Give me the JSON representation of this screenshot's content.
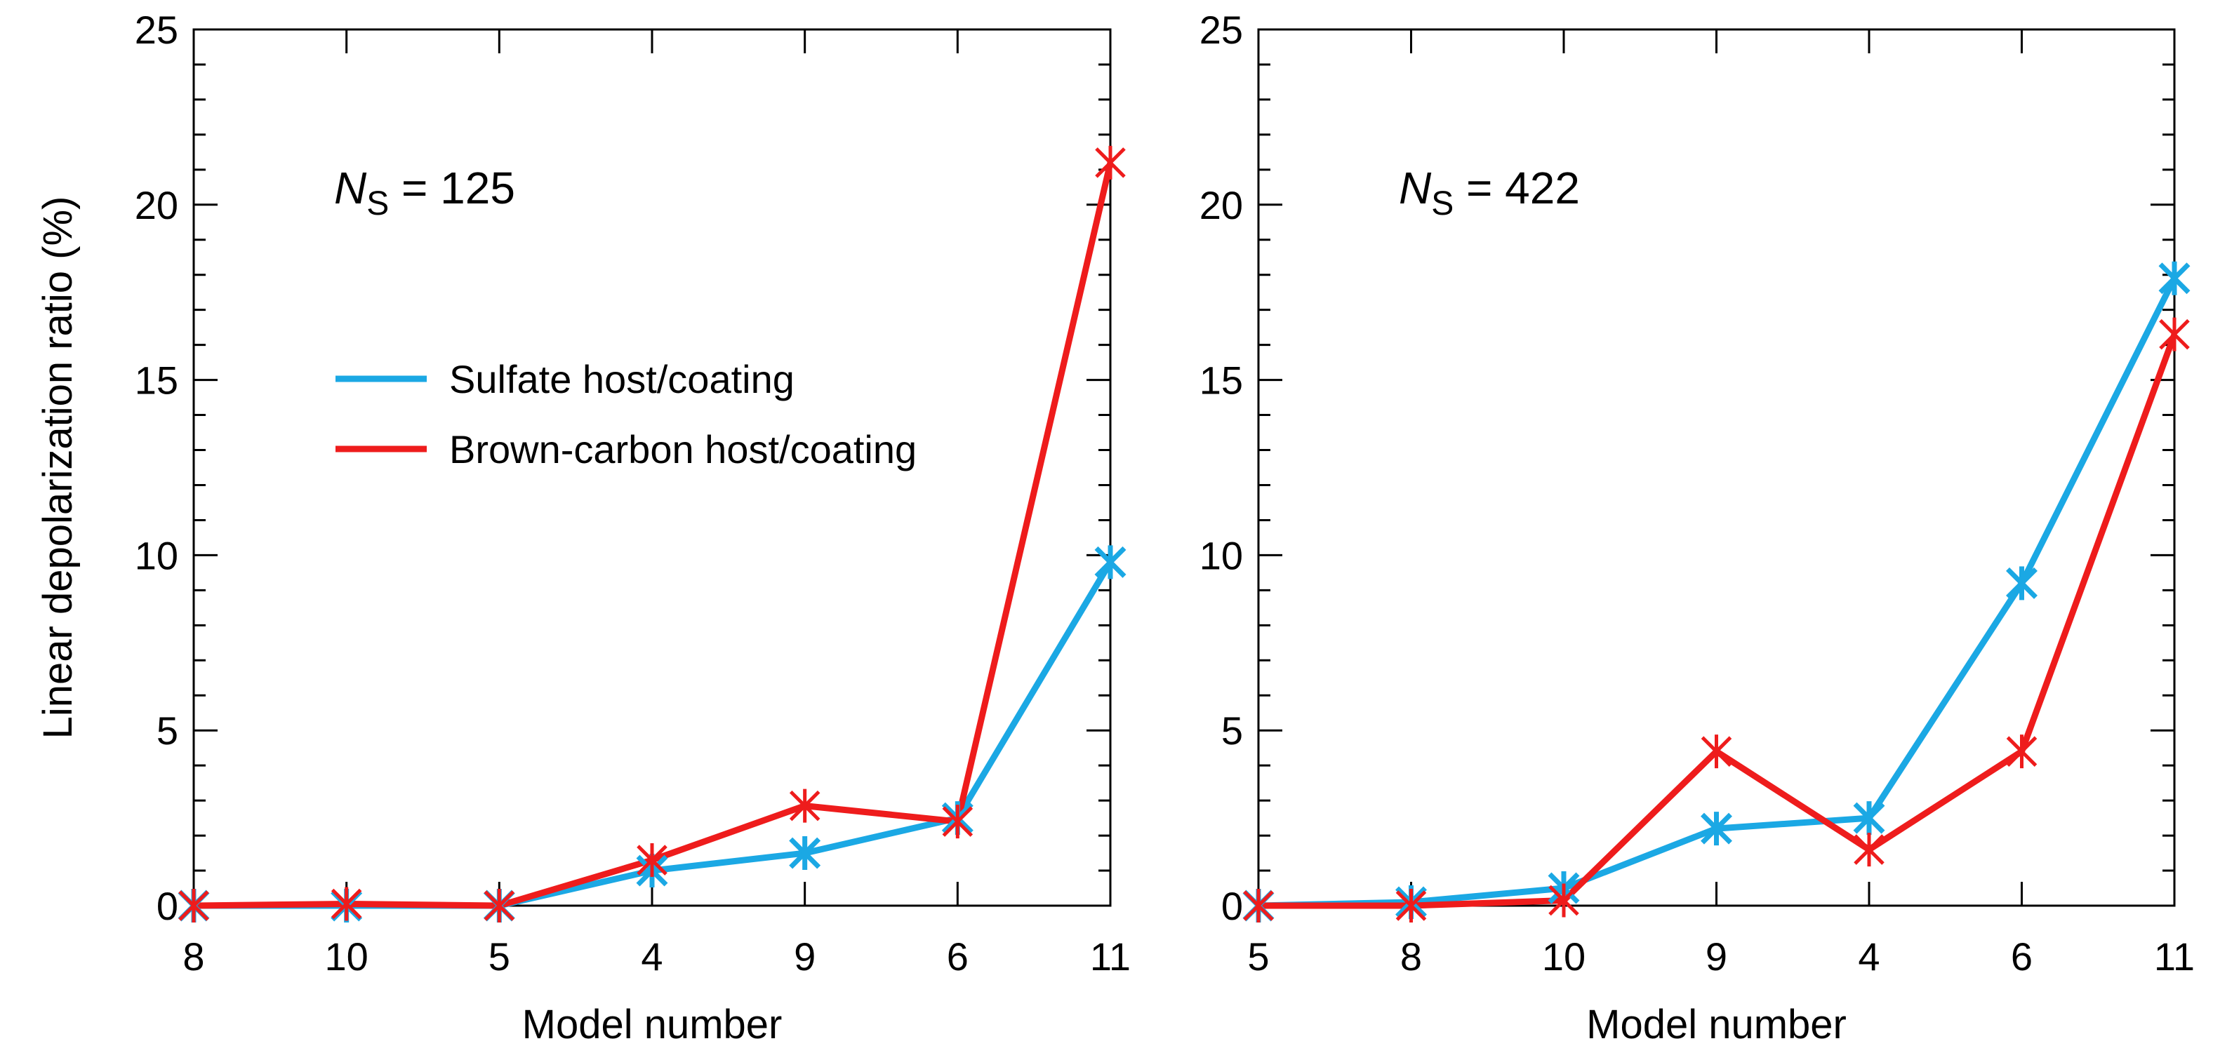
{
  "chart_data": [
    {
      "type": "line",
      "annotation": {
        "symbol": "N",
        "subscript": "S",
        "rest": " = 125"
      },
      "categories": [
        "8",
        "10",
        "5",
        "4",
        "9",
        "6",
        "11"
      ],
      "series": [
        {
          "name": "Sulfate host/coating",
          "color": "#1ba8e4",
          "values": [
            0,
            0,
            0,
            1.0,
            1.5,
            2.5,
            9.8
          ]
        },
        {
          "name": "Brown-carbon host/coating",
          "color": "#ee1c1c",
          "values": [
            0,
            0.05,
            0,
            1.3,
            2.85,
            2.4,
            21.2
          ]
        }
      ],
      "xlabel": "Model number",
      "ylabel": "Linear depolarization ratio (%)",
      "ylim": [
        0,
        25
      ],
      "yticks": [
        0,
        5,
        10,
        15,
        20,
        25
      ],
      "legend": "center-left"
    },
    {
      "type": "line",
      "annotation": {
        "symbol": "N",
        "subscript": "S",
        "rest": " = 422"
      },
      "categories": [
        "5",
        "8",
        "10",
        "9",
        "4",
        "6",
        "11"
      ],
      "series": [
        {
          "name": "Sulfate host/coating",
          "color": "#1ba8e4",
          "values": [
            0,
            0.1,
            0.5,
            2.2,
            2.5,
            9.2,
            17.9
          ]
        },
        {
          "name": "Brown-carbon host/coating",
          "color": "#ee1c1c",
          "values": [
            0,
            0,
            0.15,
            4.4,
            1.6,
            4.4,
            16.3
          ]
        }
      ],
      "xlabel": "Model number",
      "ylabel": "",
      "ylim": [
        0,
        25
      ],
      "yticks": [
        0,
        5,
        10,
        15,
        20,
        25
      ]
    }
  ]
}
